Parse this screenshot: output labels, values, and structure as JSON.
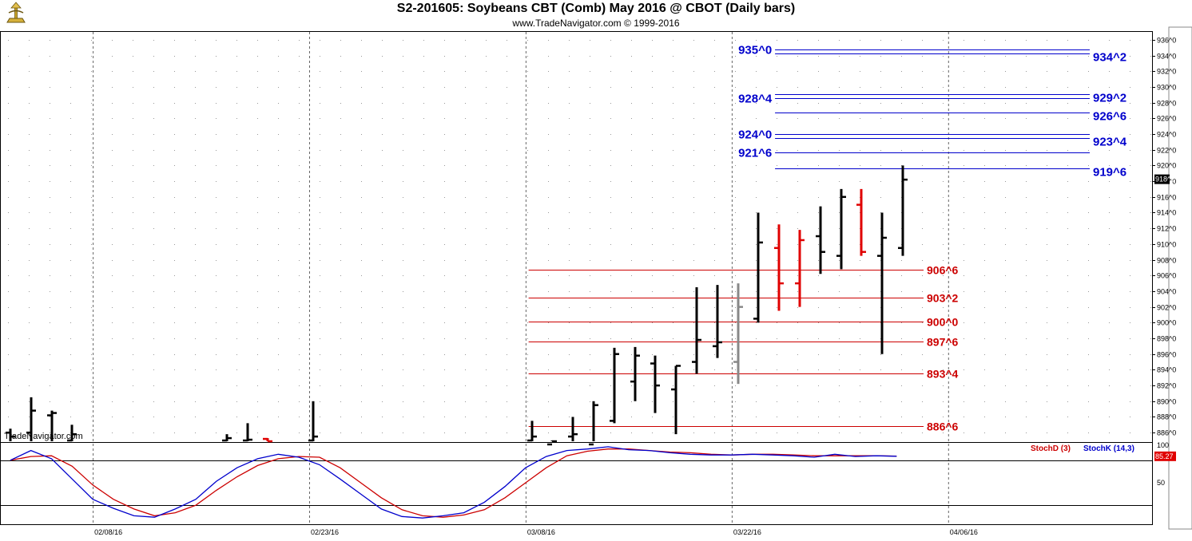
{
  "header": {
    "title": "S2-201605:  Soybeans CBT (Comb) May 2016 @ CBOT  (Daily bars)",
    "subtitle": "www.TradeNavigator.com © 1999-2016",
    "watermark": "TradeNavigator.com"
  },
  "colors": {
    "up_bar": "#000000",
    "down_bar": "#e00000",
    "neutral_bar": "#888888",
    "resistance": "#0000cc",
    "support": "#cc0000",
    "stoch_k": "#0000cc",
    "stoch_d": "#cc0000",
    "last_price_bg": "#000000",
    "stoch_value_bg": "#e00000"
  },
  "chart_data": [
    {
      "type": "ohlc",
      "name": "price",
      "y_ticks": [
        "886^0",
        "888^0",
        "890^0",
        "892^0",
        "894^0",
        "896^0",
        "898^0",
        "900^0",
        "902^0",
        "904^0",
        "906^0",
        "908^0",
        "910^0",
        "912^0",
        "914^0",
        "916^0",
        "918^0",
        "920^0",
        "922^0",
        "924^0",
        "926^0",
        "928^0",
        "930^0",
        "932^0",
        "934^0",
        "936^0"
      ],
      "ylim": [
        884.8,
        937
      ],
      "last_price_label": "918^2",
      "last_price": 918.25,
      "x_labels": [
        "02/08/16",
        "02/23/16",
        "03/08/16",
        "03/22/16",
        "04/06/16"
      ],
      "x_label_slots": [
        4.5,
        15,
        25.5,
        35.5,
        46
      ],
      "bars": [
        {
          "slot": 0.5,
          "h": 886.5,
          "l": 884.0,
          "o": 886.0,
          "c": 885.5,
          "color": "up"
        },
        {
          "slot": 1.5,
          "h": 890.5,
          "l": 884.0,
          "o": 886.0,
          "c": 888.8,
          "color": "up"
        },
        {
          "slot": 2.5,
          "h": 888.8,
          "l": 884.0,
          "o": 888.2,
          "c": 888.5,
          "color": "up"
        },
        {
          "slot": 3.5,
          "h": 887.0,
          "l": 884.0,
          "o": 885.0,
          "c": 885.8,
          "color": "up"
        },
        {
          "slot": 11.0,
          "h": 885.8,
          "l": 884.0,
          "o": 885.0,
          "c": 885.3,
          "color": "up"
        },
        {
          "slot": 12.0,
          "h": 887.2,
          "l": 884.0,
          "o": 885.0,
          "c": 885.1,
          "color": "up"
        },
        {
          "slot": 13.0,
          "h": 885.3,
          "l": 884.0,
          "o": 885.2,
          "c": 884.9,
          "color": "down"
        },
        {
          "slot": 15.2,
          "h": 890.0,
          "l": 884.0,
          "o": 885.0,
          "c": 885.5,
          "color": "up"
        },
        {
          "slot": 25.8,
          "h": 887.5,
          "l": 884.0,
          "o": 885.0,
          "c": 885.5,
          "color": "up"
        },
        {
          "slot": 26.8,
          "h": 885.0,
          "l": 884.0,
          "o": 884.5,
          "c": 884.9,
          "color": "up"
        },
        {
          "slot": 27.8,
          "h": 888.0,
          "l": 884.0,
          "o": 885.5,
          "c": 885.8,
          "color": "up"
        },
        {
          "slot": 28.8,
          "h": 890.0,
          "l": 884.2,
          "o": 884.5,
          "c": 889.5,
          "color": "up"
        },
        {
          "slot": 29.8,
          "h": 896.8,
          "l": 887.2,
          "o": 887.5,
          "c": 896.0,
          "color": "up"
        },
        {
          "slot": 30.8,
          "h": 896.9,
          "l": 890.0,
          "o": 892.5,
          "c": 895.8,
          "color": "up"
        },
        {
          "slot": 31.8,
          "h": 895.8,
          "l": 888.5,
          "o": 894.8,
          "c": 892.0,
          "color": "up"
        },
        {
          "slot": 32.8,
          "h": 894.5,
          "l": 885.8,
          "o": 891.5,
          "c": 894.5,
          "color": "up"
        },
        {
          "slot": 33.8,
          "h": 904.5,
          "l": 893.5,
          "o": 895.0,
          "c": 897.8,
          "color": "up"
        },
        {
          "slot": 34.8,
          "h": 904.8,
          "l": 895.5,
          "o": 897.0,
          "c": 897.5,
          "color": "up"
        },
        {
          "slot": 35.8,
          "h": 905.0,
          "l": 892.2,
          "o": 895.0,
          "c": 902.0,
          "color": "neutral"
        },
        {
          "slot": 36.8,
          "h": 914.0,
          "l": 900.0,
          "o": 900.5,
          "c": 910.2,
          "color": "up"
        },
        {
          "slot": 37.8,
          "h": 912.5,
          "l": 901.5,
          "o": 909.5,
          "c": 905.0,
          "color": "down"
        },
        {
          "slot": 38.8,
          "h": 911.8,
          "l": 902.0,
          "o": 905.0,
          "c": 910.5,
          "color": "down"
        },
        {
          "slot": 39.8,
          "h": 914.8,
          "l": 906.2,
          "o": 911.0,
          "c": 909.0,
          "color": "up"
        },
        {
          "slot": 40.8,
          "h": 917.0,
          "l": 906.8,
          "o": 908.5,
          "c": 916.0,
          "color": "up"
        },
        {
          "slot": 41.8,
          "h": 917.0,
          "l": 908.5,
          "o": 915.0,
          "c": 909.0,
          "color": "down"
        },
        {
          "slot": 42.8,
          "h": 914.0,
          "l": 896.0,
          "o": 908.5,
          "c": 910.8,
          "color": "up"
        },
        {
          "slot": 43.8,
          "h": 920.0,
          "l": 908.5,
          "o": 909.5,
          "c": 918.2,
          "color": "up"
        }
      ],
      "resistance_levels": [
        {
          "label": "935^0",
          "value": 934.8,
          "side": "left",
          "start_slot": 37.6
        },
        {
          "label": "934^2",
          "value": 934.3,
          "side": "right",
          "start_slot": 37.6
        },
        {
          "label": "929^2",
          "value": 929.1,
          "side": "right",
          "start_slot": 37.6
        },
        {
          "label": "928^4",
          "value": 928.6,
          "side": "left",
          "start_slot": 37.6
        },
        {
          "label": "926^6",
          "value": 926.7,
          "side": "right",
          "start_slot": 37.6
        },
        {
          "label": "924^0",
          "value": 924.0,
          "side": "left",
          "start_slot": 37.6
        },
        {
          "label": "923^4",
          "value": 923.5,
          "side": "right",
          "start_slot": 37.6
        },
        {
          "label": "921^6",
          "value": 921.7,
          "side": "left",
          "start_slot": 37.6
        },
        {
          "label": "919^6",
          "value": 919.6,
          "side": "right",
          "start_slot": 37.6
        }
      ],
      "support_levels": [
        {
          "label": "906^6",
          "value": 906.7
        },
        {
          "label": "903^2",
          "value": 903.2
        },
        {
          "label": "900^0",
          "value": 900.1
        },
        {
          "label": "897^6",
          "value": 897.6
        },
        {
          "label": "893^4",
          "value": 893.5
        },
        {
          "label": "886^6",
          "value": 886.8
        }
      ],
      "support_start_slot": 25.8,
      "support_end_slot": 45.8
    },
    {
      "type": "line",
      "name": "stochastic",
      "ylim": [
        0,
        100
      ],
      "y_ticks": [
        "100",
        "50"
      ],
      "levels": [
        80,
        20
      ],
      "last_value_label": "85.27",
      "legend": [
        {
          "name": "StochD (3)",
          "color": "#cc0000"
        },
        {
          "name": "StochK (14,3)",
          "color": "#0000cc"
        }
      ],
      "x": [
        0.5,
        1.5,
        2.5,
        3.5,
        4.5,
        5.5,
        6.5,
        7.5,
        8.5,
        9.5,
        10.5,
        11.5,
        12.5,
        13.5,
        14.5,
        15.5,
        16.5,
        17.5,
        18.5,
        19.5,
        20.5,
        21.5,
        22.5,
        23.5,
        24.5,
        25.5,
        26.5,
        27.5,
        28.5,
        29.5,
        30.5,
        31.5,
        32.5,
        33.5,
        34.5,
        35.5,
        36.5,
        37.5,
        38.5,
        39.5,
        40.5,
        41.5,
        42.5,
        43.5
      ],
      "series": [
        {
          "name": "StochK (14,3)",
          "color": "#0000cc",
          "values": [
            80,
            93,
            82,
            55,
            28,
            16,
            6,
            4,
            15,
            28,
            52,
            70,
            82,
            88,
            84,
            74,
            55,
            35,
            15,
            5,
            3,
            6,
            10,
            24,
            45,
            70,
            85,
            93,
            95,
            98,
            94,
            93,
            90,
            88,
            87,
            87,
            88,
            87,
            86,
            84,
            88,
            85,
            86,
            85.27
          ]
        },
        {
          "name": "StochD (3)",
          "color": "#cc0000",
          "values": [
            80,
            85,
            86,
            72,
            47,
            28,
            15,
            6,
            10,
            20,
            40,
            58,
            73,
            82,
            85,
            84,
            70,
            50,
            30,
            14,
            6,
            4,
            7,
            14,
            30,
            50,
            70,
            86,
            92,
            95,
            95,
            93,
            91,
            90,
            88,
            87,
            88,
            88,
            87,
            86,
            86,
            86,
            86,
            85.5
          ]
        }
      ]
    }
  ]
}
